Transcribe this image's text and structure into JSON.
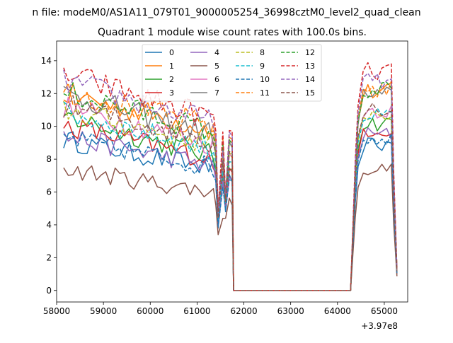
{
  "figure": {
    "suptitle": "n file: modeM0/AS1A11_079T01_9000005254_36998cztM0_level2_quad_clean",
    "title": "Quadrant 1 module wise count rates with 100.0s bins.",
    "offset_label": "+3.97e8"
  },
  "chart_data": {
    "type": "line",
    "title": "Quadrant 1 module wise count rates with 100.0s bins.",
    "xlabel": "",
    "ylabel": "",
    "x_offset_note": "+3.97e8",
    "xlim": [
      58000,
      65500
    ],
    "ylim": [
      -0.7,
      15.2
    ],
    "x_ticks": [
      58000,
      59000,
      60000,
      61000,
      62000,
      63000,
      64000,
      65000
    ],
    "y_ticks": [
      0,
      2,
      4,
      6,
      8,
      10,
      12,
      14
    ],
    "grid": false,
    "legend": {
      "placement": "top-center",
      "columns": 4
    },
    "series": [
      {
        "name": "0",
        "color": "#1f77b4",
        "dash": "solid",
        "start": 9.2,
        "end": 7.4,
        "dip": 3.8,
        "plateau": 8.9
      },
      {
        "name": "1",
        "color": "#ff7f0e",
        "dash": "solid",
        "start": 12.0,
        "end": 9.8,
        "dip": 4.6,
        "plateau": 12.1
      },
      {
        "name": "2",
        "color": "#2ca02c",
        "dash": "solid",
        "start": 10.6,
        "end": 8.2,
        "dip": 4.3,
        "plateau": 10.2
      },
      {
        "name": "3",
        "color": "#d62728",
        "dash": "solid",
        "start": 10.1,
        "end": 8.0,
        "dip": 4.1,
        "plateau": 9.8
      },
      {
        "name": "4",
        "color": "#9467bd",
        "dash": "solid",
        "start": 9.4,
        "end": 7.6,
        "dip": 3.9,
        "plateau": 9.5
      },
      {
        "name": "5",
        "color": "#8c564b",
        "dash": "solid",
        "start": 7.4,
        "end": 6.0,
        "dip": 3.4,
        "plateau": 7.4
      },
      {
        "name": "6",
        "color": "#e377c2",
        "dash": "solid",
        "start": 11.2,
        "end": 8.9,
        "dip": 4.4,
        "plateau": 11.0
      },
      {
        "name": "7",
        "color": "#7f7f7f",
        "dash": "solid",
        "start": 12.0,
        "end": 9.5,
        "dip": 4.5,
        "plateau": 11.9
      },
      {
        "name": "8",
        "color": "#bcbd22",
        "dash": "dashed",
        "start": 11.0,
        "end": 8.9,
        "dip": 4.4,
        "plateau": 10.8
      },
      {
        "name": "9",
        "color": "#17becf",
        "dash": "dashed",
        "start": 10.8,
        "end": 8.6,
        "dip": 4.3,
        "plateau": 10.6
      },
      {
        "name": "10",
        "color": "#1f77b4",
        "dash": "dashed",
        "start": 9.3,
        "end": 7.5,
        "dip": 3.9,
        "plateau": 9.3
      },
      {
        "name": "11",
        "color": "#ff7f0e",
        "dash": "dashed",
        "start": 12.2,
        "end": 10.0,
        "dip": 4.6,
        "plateau": 12.3
      },
      {
        "name": "12",
        "color": "#2ca02c",
        "dash": "dashed",
        "start": 12.1,
        "end": 9.7,
        "dip": 4.5,
        "plateau": 12.2
      },
      {
        "name": "13",
        "color": "#d62728",
        "dash": "dashed",
        "start": 13.2,
        "end": 10.5,
        "dip": 4.8,
        "plateau": 13.3
      },
      {
        "name": "14",
        "color": "#9467bd",
        "dash": "dashed",
        "start": 12.8,
        "end": 10.2,
        "dip": 4.7,
        "plateau": 12.7
      },
      {
        "name": "15",
        "color": "#8c564b",
        "dash": "dashed",
        "start": 11.3,
        "end": 9.1,
        "dip": 4.4,
        "plateau": 11.1
      }
    ],
    "segments": {
      "first_active": [
        58150,
        61450
      ],
      "dip_x": 61450,
      "zero_range": [
        61780,
        64280
      ],
      "second_active": [
        64380,
        65270
      ]
    }
  }
}
